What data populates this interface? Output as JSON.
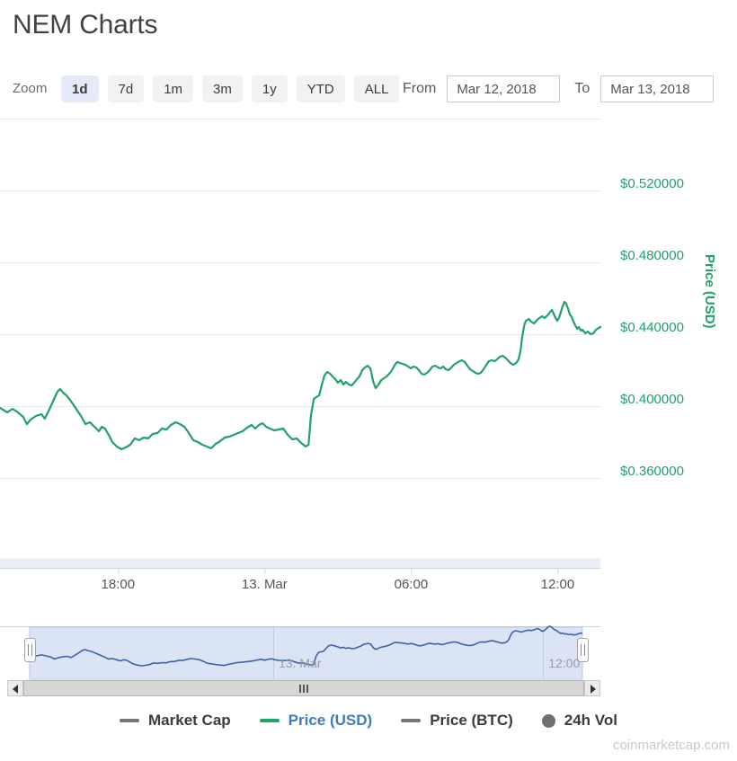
{
  "page": {
    "title": "NEM Charts",
    "watermark": "coinmarketcap.com"
  },
  "controls": {
    "zoom_label": "Zoom",
    "zoom_buttons": [
      {
        "label": "1d",
        "selected": true
      },
      {
        "label": "7d",
        "selected": false
      },
      {
        "label": "1m",
        "selected": false
      },
      {
        "label": "3m",
        "selected": false
      },
      {
        "label": "1y",
        "selected": false
      },
      {
        "label": "YTD",
        "selected": false
      },
      {
        "label": "ALL",
        "selected": false
      }
    ],
    "from_label": "From",
    "from_value": "Mar 12, 2018",
    "to_label": "To",
    "to_value": "Mar 13, 2018"
  },
  "legend": {
    "items": [
      {
        "label": "Market Cap",
        "marker": "dash",
        "marker_color": "#757575",
        "label_color": "#3c3c3c",
        "active": false
      },
      {
        "label": "Price (USD)",
        "marker": "dash",
        "marker_color": "#20a36a",
        "label_color": "#3e7cbf",
        "active": true
      },
      {
        "label": "Price (BTC)",
        "marker": "dash",
        "marker_color": "#757575",
        "label_color": "#3c3c3c",
        "active": false
      },
      {
        "label": "24h Vol",
        "marker": "circle",
        "marker_color": "#6f6f6f",
        "label_color": "#3c3c3c",
        "active": false
      }
    ]
  },
  "chart_data": {
    "type": "line",
    "title": "NEM price in USD, 1-day range (Mar 12, 2018 - Mar 13, 2018)",
    "time_origin": "2018-03-12 00:00",
    "t_unit": "minutes since time_origin",
    "x_axis": {
      "range": [
        790,
        2265
      ],
      "ticks": [
        {
          "t": 1080,
          "label": "18:00"
        },
        {
          "t": 1440,
          "label": "13. Mar"
        },
        {
          "t": 1800,
          "label": "06:00"
        },
        {
          "t": 2160,
          "label": "12:00"
        }
      ]
    },
    "y_axis": {
      "title": "Price (USD)",
      "color": "#1fa169",
      "tick_values": [
        0.52,
        0.48,
        0.44,
        0.4,
        0.36
      ],
      "tick_labels": [
        "$0.520000",
        "$0.480000",
        "$0.440000",
        "$0.400000",
        "$0.360000"
      ],
      "grid_values": [
        0.56,
        0.52,
        0.48,
        0.44,
        0.4,
        0.36
      ],
      "range": [
        0.35,
        0.565
      ],
      "grid_on": true
    },
    "volume_strip": {
      "name": "24h Vol",
      "color": "#e9edf6"
    },
    "navigator": {
      "line_color": "#3e62a8",
      "mask_color": "#dbe4f4",
      "outline_color": "#b9c6e0",
      "selected_range": "full",
      "labels": [
        {
          "t": 1440,
          "label": "13. Mar"
        },
        {
          "t": 2160,
          "label": "12:00"
        }
      ]
    },
    "series": [
      {
        "name": "Price (USD)",
        "color": "#1fa169",
        "points": [
          [
            790,
            0.399
          ],
          [
            808,
            0.3965
          ],
          [
            821,
            0.3985
          ],
          [
            834,
            0.3965
          ],
          [
            847,
            0.394
          ],
          [
            856,
            0.39
          ],
          [
            865,
            0.3925
          ],
          [
            878,
            0.3945
          ],
          [
            892,
            0.3955
          ],
          [
            900,
            0.393
          ],
          [
            911,
            0.398
          ],
          [
            923,
            0.404
          ],
          [
            931,
            0.408
          ],
          [
            938,
            0.4095
          ],
          [
            945,
            0.4075
          ],
          [
            953,
            0.406
          ],
          [
            962,
            0.4035
          ],
          [
            971,
            0.4005
          ],
          [
            980,
            0.3975
          ],
          [
            989,
            0.3945
          ],
          [
            1000,
            0.39
          ],
          [
            1011,
            0.391
          ],
          [
            1022,
            0.3885
          ],
          [
            1033,
            0.386
          ],
          [
            1040,
            0.3885
          ],
          [
            1048,
            0.3875
          ],
          [
            1057,
            0.384
          ],
          [
            1066,
            0.38
          ],
          [
            1077,
            0.3775
          ],
          [
            1088,
            0.376
          ],
          [
            1099,
            0.377
          ],
          [
            1110,
            0.3785
          ],
          [
            1121,
            0.382
          ],
          [
            1132,
            0.381
          ],
          [
            1143,
            0.3825
          ],
          [
            1154,
            0.382
          ],
          [
            1165,
            0.3845
          ],
          [
            1177,
            0.385
          ],
          [
            1188,
            0.3875
          ],
          [
            1199,
            0.387
          ],
          [
            1210,
            0.3895
          ],
          [
            1221,
            0.391
          ],
          [
            1232,
            0.39
          ],
          [
            1243,
            0.3885
          ],
          [
            1254,
            0.385
          ],
          [
            1265,
            0.381
          ],
          [
            1276,
            0.38
          ],
          [
            1287,
            0.3785
          ],
          [
            1298,
            0.3775
          ],
          [
            1309,
            0.3765
          ],
          [
            1320,
            0.379
          ],
          [
            1331,
            0.3805
          ],
          [
            1342,
            0.3825
          ],
          [
            1353,
            0.383
          ],
          [
            1364,
            0.384
          ],
          [
            1375,
            0.385
          ],
          [
            1386,
            0.386
          ],
          [
            1397,
            0.388
          ],
          [
            1408,
            0.3895
          ],
          [
            1417,
            0.3875
          ],
          [
            1426,
            0.3895
          ],
          [
            1435,
            0.3905
          ],
          [
            1444,
            0.3885
          ],
          [
            1453,
            0.3875
          ],
          [
            1464,
            0.3865
          ],
          [
            1475,
            0.387
          ],
          [
            1486,
            0.3875
          ],
          [
            1497,
            0.384
          ],
          [
            1508,
            0.3815
          ],
          [
            1519,
            0.382
          ],
          [
            1530,
            0.3795
          ],
          [
            1541,
            0.3775
          ],
          [
            1548,
            0.3785
          ],
          [
            1554,
            0.395
          ],
          [
            1561,
            0.404
          ],
          [
            1567,
            0.405
          ],
          [
            1574,
            0.406
          ],
          [
            1581,
            0.412
          ],
          [
            1587,
            0.417
          ],
          [
            1594,
            0.419
          ],
          [
            1601,
            0.418
          ],
          [
            1607,
            0.4165
          ],
          [
            1614,
            0.415
          ],
          [
            1620,
            0.413
          ],
          [
            1627,
            0.4145
          ],
          [
            1634,
            0.412
          ],
          [
            1640,
            0.4135
          ],
          [
            1647,
            0.412
          ],
          [
            1654,
            0.4115
          ],
          [
            1660,
            0.413
          ],
          [
            1667,
            0.415
          ],
          [
            1673,
            0.4165
          ],
          [
            1680,
            0.42
          ],
          [
            1687,
            0.4215
          ],
          [
            1693,
            0.4225
          ],
          [
            1700,
            0.421
          ],
          [
            1707,
            0.4135
          ],
          [
            1713,
            0.41
          ],
          [
            1720,
            0.412
          ],
          [
            1727,
            0.4145
          ],
          [
            1733,
            0.4155
          ],
          [
            1740,
            0.4165
          ],
          [
            1746,
            0.418
          ],
          [
            1753,
            0.42
          ],
          [
            1760,
            0.423
          ],
          [
            1766,
            0.4245
          ],
          [
            1773,
            0.424
          ],
          [
            1779,
            0.4235
          ],
          [
            1786,
            0.423
          ],
          [
            1793,
            0.422
          ],
          [
            1799,
            0.421
          ],
          [
            1806,
            0.422
          ],
          [
            1813,
            0.4215
          ],
          [
            1819,
            0.42
          ],
          [
            1826,
            0.418
          ],
          [
            1832,
            0.4175
          ],
          [
            1839,
            0.4185
          ],
          [
            1846,
            0.42
          ],
          [
            1852,
            0.422
          ],
          [
            1859,
            0.4225
          ],
          [
            1866,
            0.4215
          ],
          [
            1872,
            0.421
          ],
          [
            1879,
            0.422
          ],
          [
            1885,
            0.4205
          ],
          [
            1892,
            0.42
          ],
          [
            1899,
            0.4215
          ],
          [
            1905,
            0.423
          ],
          [
            1912,
            0.424
          ],
          [
            1919,
            0.425
          ],
          [
            1925,
            0.4255
          ],
          [
            1932,
            0.4245
          ],
          [
            1938,
            0.4225
          ],
          [
            1945,
            0.4205
          ],
          [
            1952,
            0.4195
          ],
          [
            1958,
            0.4185
          ],
          [
            1965,
            0.418
          ],
          [
            1971,
            0.4185
          ],
          [
            1978,
            0.4205
          ],
          [
            1985,
            0.423
          ],
          [
            1991,
            0.425
          ],
          [
            1998,
            0.4255
          ],
          [
            2005,
            0.425
          ],
          [
            2011,
            0.426
          ],
          [
            2018,
            0.4275
          ],
          [
            2025,
            0.428
          ],
          [
            2031,
            0.427
          ],
          [
            2038,
            0.4255
          ],
          [
            2044,
            0.424
          ],
          [
            2051,
            0.423
          ],
          [
            2058,
            0.424
          ],
          [
            2064,
            0.426
          ],
          [
            2069,
            0.431
          ],
          [
            2073,
            0.4385
          ],
          [
            2078,
            0.445
          ],
          [
            2082,
            0.4475
          ],
          [
            2089,
            0.4485
          ],
          [
            2095,
            0.447
          ],
          [
            2102,
            0.446
          ],
          [
            2108,
            0.4475
          ],
          [
            2115,
            0.449
          ],
          [
            2122,
            0.45
          ],
          [
            2128,
            0.449
          ],
          [
            2135,
            0.4505
          ],
          [
            2142,
            0.4525
          ],
          [
            2146,
            0.4535
          ],
          [
            2150,
            0.4515
          ],
          [
            2155,
            0.449
          ],
          [
            2159,
            0.4475
          ],
          [
            2164,
            0.4495
          ],
          [
            2168,
            0.4525
          ],
          [
            2172,
            0.4555
          ],
          [
            2177,
            0.458
          ],
          [
            2181,
            0.457
          ],
          [
            2186,
            0.454
          ],
          [
            2190,
            0.451
          ],
          [
            2195,
            0.4495
          ],
          [
            2199,
            0.447
          ],
          [
            2203,
            0.445
          ],
          [
            2208,
            0.443
          ],
          [
            2212,
            0.444
          ],
          [
            2217,
            0.442
          ],
          [
            2221,
            0.4425
          ],
          [
            2228,
            0.4405
          ],
          [
            2234,
            0.4415
          ],
          [
            2241,
            0.44
          ],
          [
            2248,
            0.4405
          ],
          [
            2254,
            0.4425
          ],
          [
            2261,
            0.4435
          ],
          [
            2265,
            0.444
          ]
        ]
      }
    ]
  }
}
